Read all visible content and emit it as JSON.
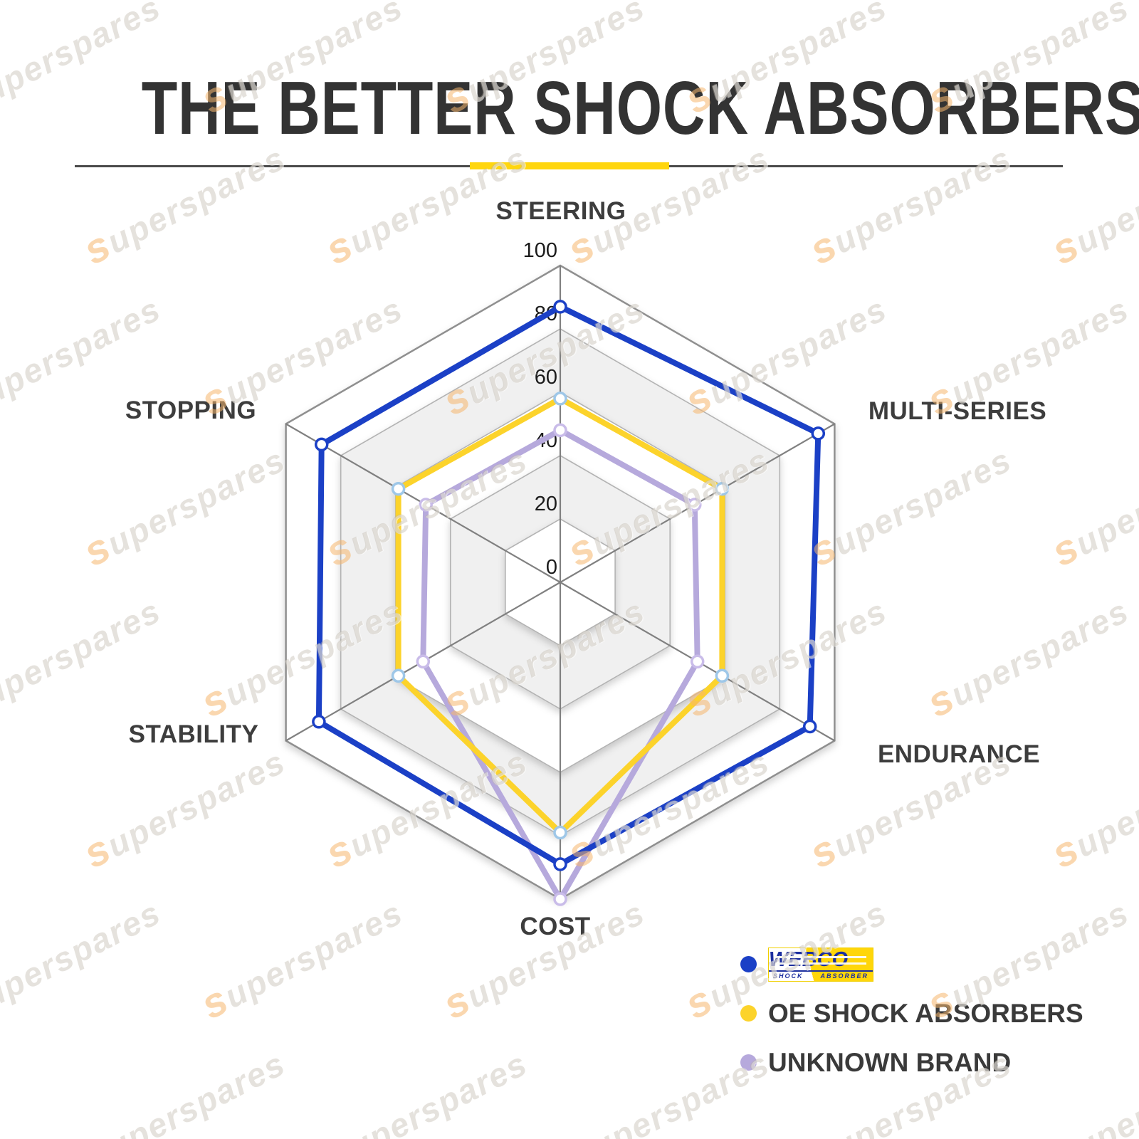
{
  "page": {
    "title": "THE BETTER SHOCK ABSORBERS"
  },
  "watermark": {
    "text": "superspares"
  },
  "chart_data": {
    "type": "radar",
    "title": "THE BETTER SHOCK ABSORBERS",
    "grid_shape": "hexagon",
    "categories": [
      "STEERING",
      "MULTI-SERIES",
      "ENDURANCE",
      "COST",
      "STABILITY",
      "STOPPING"
    ],
    "axis_range": [
      0,
      100
    ],
    "axis_ticks": [
      0,
      20,
      40,
      60,
      80,
      100
    ],
    "band_fills": [
      "#ffffff",
      "#f0f0f0"
    ],
    "series": [
      {
        "name": "WEBCO SHOCK ABSORBER",
        "color": "#1b40c6",
        "marker_color": "#1b40c6",
        "values": [
          87,
          94,
          91,
          89,
          88,
          87
        ]
      },
      {
        "name": "OE SHOCK ABSORBERS",
        "color": "#fcd32b",
        "marker_color": "#9ec7e8",
        "values": [
          58,
          59,
          59,
          79,
          59,
          59
        ]
      },
      {
        "name": "UNKNOWN BRAND",
        "color": "#b6a9dc",
        "marker_color": "#c9bce9",
        "values": [
          48,
          49,
          50,
          100,
          50,
          49
        ]
      }
    ],
    "legend_position": "bottom-right"
  },
  "legend": {
    "items": [
      {
        "label": "WEBCO",
        "dot_color": "#1b40c6",
        "is_logo": true,
        "logo_text": "WEBCO",
        "logo_sub_left": "SHOCK",
        "logo_sub_right": "ABSORBER"
      },
      {
        "label": "OE SHOCK ABSORBERS",
        "dot_color": "#fcd32b",
        "is_logo": false
      },
      {
        "label": "UNKNOWN BRAND",
        "dot_color": "#b6a9dc",
        "is_logo": false
      }
    ]
  }
}
